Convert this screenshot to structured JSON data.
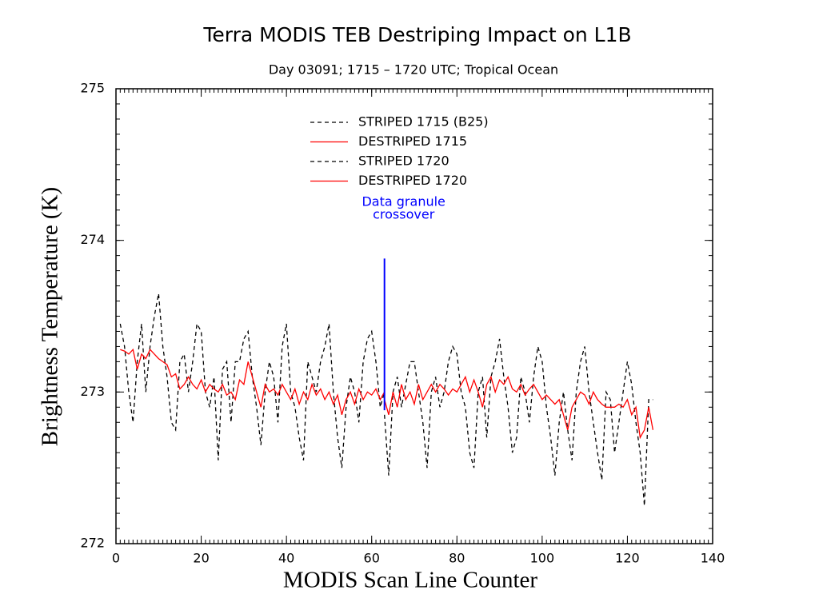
{
  "chart_data": {
    "type": "line",
    "title": "Terra MODIS TEB Destriping Impact on L1B",
    "subtitle": "Day 03091; 1715 – 1720 UTC; Tropical Ocean",
    "x_label": "MODIS Scan Line Counter",
    "y_label": "Brightness Temperature (K)",
    "xlim": [
      0,
      140
    ],
    "xticks": [
      0,
      20,
      40,
      60,
      80,
      100,
      120,
      140
    ],
    "ylim": [
      272,
      275
    ],
    "yticks": [
      272,
      273,
      274,
      275
    ],
    "minor_ticks": {
      "x": 1,
      "y": 0.1
    },
    "legend": "upper center",
    "series": [
      {
        "name": "STRIPED 1715 (B25)",
        "color": "#000000",
        "dash": true,
        "x": [
          1,
          2,
          3,
          4,
          5,
          6,
          7,
          8,
          9,
          10,
          11,
          12,
          13,
          14,
          15,
          16,
          17,
          18,
          19,
          20,
          21,
          22,
          23,
          24,
          25,
          26,
          27,
          28,
          29,
          30,
          31,
          32,
          33,
          34,
          35,
          36,
          37,
          38,
          39,
          40,
          41,
          42,
          43,
          44,
          45,
          46,
          47,
          48,
          49,
          50,
          51,
          52,
          53,
          54,
          55,
          56,
          57,
          58,
          59,
          60,
          61,
          62,
          63
        ],
        "values": [
          273.45,
          273.3,
          273.0,
          272.8,
          273.2,
          273.45,
          273.0,
          273.3,
          273.5,
          273.65,
          273.3,
          273.1,
          272.8,
          272.75,
          273.2,
          273.25,
          273.0,
          273.2,
          273.45,
          273.4,
          273.0,
          272.9,
          273.1,
          272.55,
          273.15,
          273.2,
          272.8,
          273.2,
          273.2,
          273.35,
          273.4,
          273.1,
          272.9,
          272.65,
          273.0,
          273.2,
          273.1,
          272.8,
          273.3,
          273.45,
          273.0,
          272.9,
          272.7,
          272.55,
          273.2,
          273.1,
          273.0,
          273.2,
          273.3,
          273.45,
          273.0,
          272.7,
          272.5,
          272.9,
          273.1,
          273.0,
          272.8,
          273.2,
          273.35,
          273.4,
          273.2,
          272.9,
          273.0
        ]
      },
      {
        "name": "DESTRIPED 1715",
        "color": "#ff0000",
        "dash": false,
        "x": [
          1,
          2,
          3,
          4,
          5,
          6,
          7,
          8,
          9,
          10,
          11,
          12,
          13,
          14,
          15,
          16,
          17,
          18,
          19,
          20,
          21,
          22,
          23,
          24,
          25,
          26,
          27,
          28,
          29,
          30,
          31,
          32,
          33,
          34,
          35,
          36,
          37,
          38,
          39,
          40,
          41,
          42,
          43,
          44,
          45,
          46,
          47,
          48,
          49,
          50,
          51,
          52,
          53,
          54,
          55,
          56,
          57,
          58,
          59,
          60,
          61,
          62,
          63
        ],
        "values": [
          273.28,
          273.27,
          273.25,
          273.28,
          273.15,
          273.25,
          273.22,
          273.28,
          273.25,
          273.22,
          273.2,
          273.18,
          273.1,
          273.12,
          273.02,
          273.05,
          273.1,
          273.05,
          273.02,
          273.08,
          273.0,
          273.05,
          273.02,
          273.0,
          273.05,
          272.98,
          273.0,
          272.95,
          273.08,
          273.05,
          273.2,
          273.1,
          273.0,
          272.9,
          273.05,
          273.0,
          273.02,
          272.98,
          273.05,
          273.0,
          272.95,
          273.02,
          272.92,
          273.0,
          272.95,
          273.05,
          272.98,
          273.02,
          272.95,
          273.0,
          272.92,
          272.98,
          272.85,
          272.95,
          273.0,
          272.92,
          273.02,
          272.95,
          273.0,
          272.98,
          273.02,
          272.95,
          273.0
        ]
      },
      {
        "name": "STRIPED 1720",
        "color": "#000000",
        "dash": true,
        "x": [
          63,
          64,
          65,
          66,
          67,
          68,
          69,
          70,
          71,
          72,
          73,
          74,
          75,
          76,
          77,
          78,
          79,
          80,
          81,
          82,
          83,
          84,
          85,
          86,
          87,
          88,
          89,
          90,
          91,
          92,
          93,
          94,
          95,
          96,
          97,
          98,
          99,
          100,
          101,
          102,
          103,
          104,
          105,
          106,
          107,
          108,
          109,
          110,
          111,
          112,
          113,
          114,
          115,
          116,
          117,
          118,
          119,
          120,
          121,
          122,
          123,
          124,
          125,
          126
        ],
        "values": [
          272.85,
          272.45,
          273.0,
          273.1,
          272.9,
          273.05,
          273.2,
          273.2,
          273.0,
          272.8,
          272.5,
          273.0,
          273.1,
          272.9,
          273.0,
          273.2,
          273.3,
          273.25,
          273.0,
          272.9,
          272.6,
          272.5,
          273.0,
          273.1,
          272.7,
          273.1,
          273.2,
          273.35,
          273.1,
          272.9,
          272.6,
          272.7,
          273.1,
          273.0,
          272.8,
          273.1,
          273.3,
          273.2,
          272.9,
          272.7,
          272.45,
          272.8,
          273.0,
          272.75,
          272.55,
          273.0,
          273.2,
          273.3,
          273.0,
          272.8,
          272.6,
          272.42,
          273.0,
          272.95,
          272.6,
          272.8,
          273.0,
          273.2,
          273.05,
          272.8,
          272.6,
          272.25,
          272.95,
          272.95
        ]
      },
      {
        "name": "DESTRIPED 1720",
        "color": "#ff0000",
        "dash": false,
        "x": [
          63,
          64,
          65,
          66,
          67,
          68,
          69,
          70,
          71,
          72,
          73,
          74,
          75,
          76,
          77,
          78,
          79,
          80,
          81,
          82,
          83,
          84,
          85,
          86,
          87,
          88,
          89,
          90,
          91,
          92,
          93,
          94,
          95,
          96,
          97,
          98,
          99,
          100,
          101,
          102,
          103,
          104,
          105,
          106,
          107,
          108,
          109,
          110,
          111,
          112,
          113,
          114,
          115,
          116,
          117,
          118,
          119,
          120,
          121,
          122,
          123,
          124,
          125,
          126
        ],
        "values": [
          272.95,
          272.85,
          273.0,
          272.9,
          273.05,
          272.95,
          273.0,
          272.92,
          273.05,
          272.95,
          273.0,
          273.05,
          273.0,
          273.05,
          273.02,
          272.98,
          273.02,
          273.0,
          273.05,
          273.1,
          273.0,
          273.08,
          273.0,
          272.9,
          273.05,
          273.1,
          273.0,
          273.08,
          273.05,
          273.1,
          273.02,
          273.0,
          273.05,
          272.98,
          273.02,
          273.05,
          273.0,
          272.95,
          272.98,
          272.95,
          272.92,
          272.95,
          272.85,
          272.75,
          272.9,
          272.95,
          273.0,
          272.98,
          272.92,
          273.0,
          272.95,
          272.92,
          272.9,
          272.9,
          272.9,
          272.92,
          272.9,
          272.95,
          272.85,
          272.9,
          272.7,
          272.75,
          272.9,
          272.75
        ]
      }
    ],
    "annotations": [
      {
        "lines": [
          "Data granule",
          "crossover"
        ],
        "x": 63,
        "y": [
          272.88,
          273.88
        ],
        "color": "#0000ff"
      }
    ]
  }
}
